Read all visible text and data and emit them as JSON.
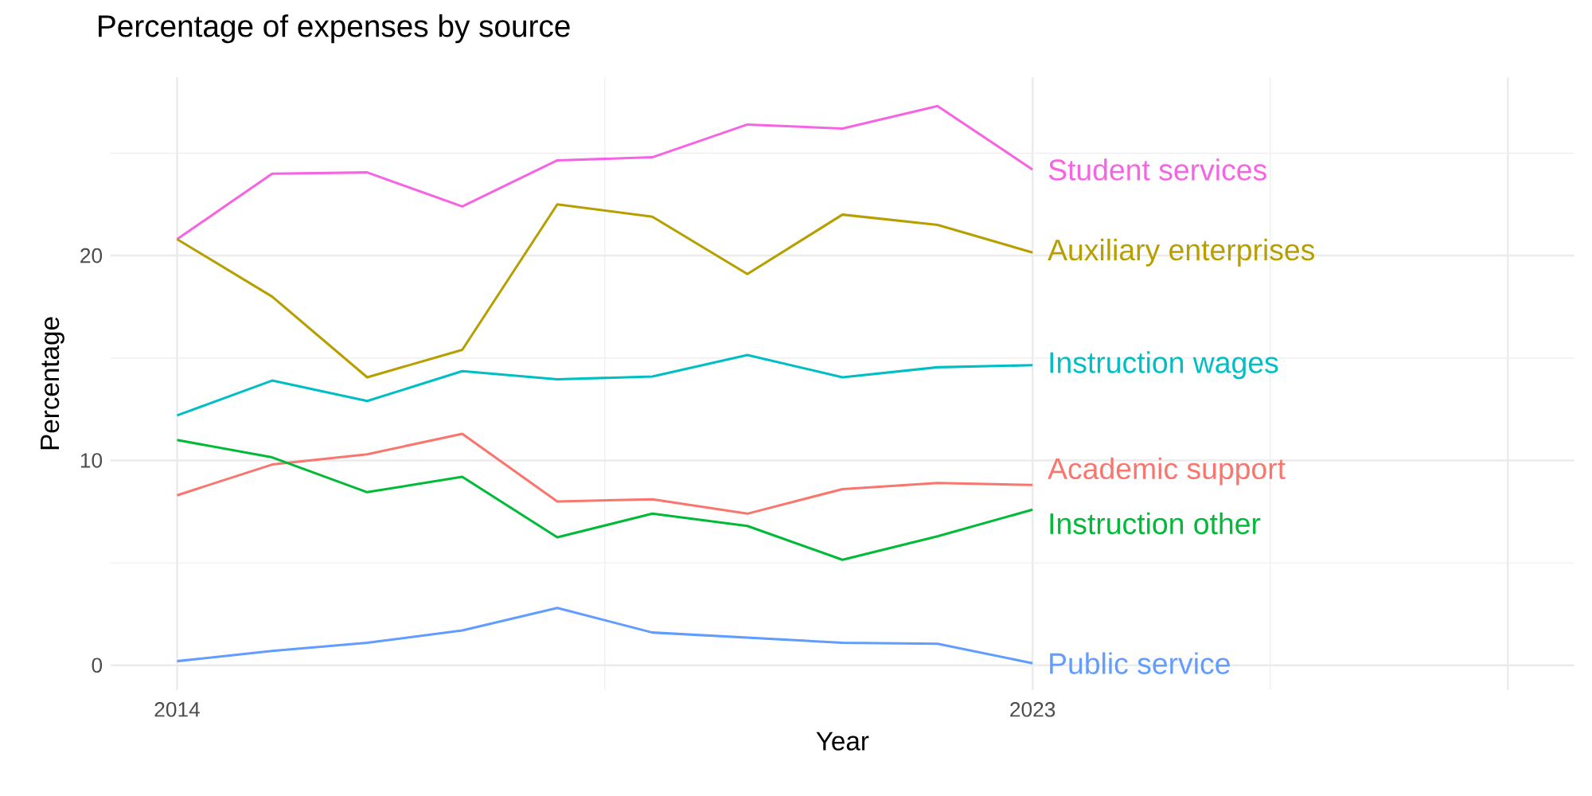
{
  "chart_data": {
    "type": "line",
    "title": "Percentage of expenses by source",
    "xlabel": "Year",
    "ylabel": "Percentage",
    "x": [
      2014,
      2015,
      2016,
      2017,
      2018,
      2019,
      2020,
      2021,
      2022,
      2023
    ],
    "series": [
      {
        "name": "Student services",
        "color": "#F564E3",
        "values": [
          20.8,
          24.0,
          24.06,
          22.4,
          24.65,
          24.8,
          26.4,
          26.2,
          27.3,
          24.2
        ]
      },
      {
        "name": "Auxiliary enterprises",
        "color": "#B79F00",
        "values": [
          20.8,
          18.0,
          14.06,
          15.4,
          22.5,
          21.9,
          19.1,
          22.0,
          21.5,
          20.15
        ]
      },
      {
        "name": "Instruction wages",
        "color": "#00BFC4",
        "values": [
          12.2,
          13.9,
          12.9,
          14.36,
          13.96,
          14.1,
          15.15,
          14.06,
          14.55,
          14.65
        ]
      },
      {
        "name": "Academic support",
        "color": "#F8766D",
        "values": [
          8.3,
          9.8,
          10.3,
          11.3,
          8.0,
          8.1,
          7.4,
          8.6,
          8.9,
          8.8
        ]
      },
      {
        "name": "Instruction other",
        "color": "#00BA38",
        "values": [
          11.0,
          10.15,
          8.45,
          9.2,
          6.25,
          7.4,
          6.8,
          5.15,
          6.3,
          7.6
        ]
      },
      {
        "name": "Public service",
        "color": "#619CFF",
        "values": [
          0.2,
          0.7,
          1.1,
          1.7,
          2.8,
          1.6,
          1.35,
          1.1,
          1.05,
          0.1
        ]
      }
    ],
    "xlim": [
      2013.3,
      2028.7
    ],
    "ylim": [
      -1.2,
      28.7
    ],
    "xticks": [
      2014,
      2023,
      {
        "value": 2028,
        "label": null
      }
    ],
    "yticks": [
      0,
      10,
      20
    ],
    "grid": true,
    "legend": false,
    "marker": "none",
    "line_style": "solid"
  }
}
